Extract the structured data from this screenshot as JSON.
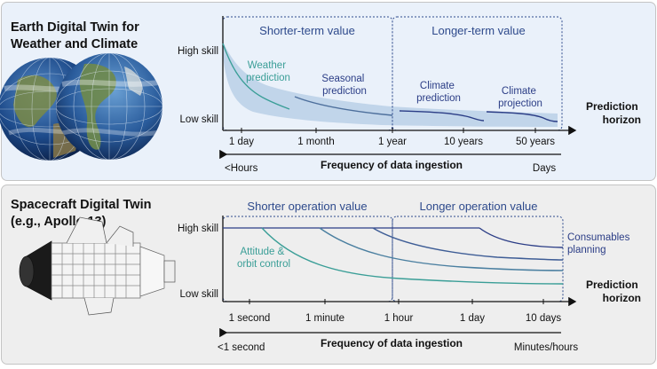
{
  "earth": {
    "title_line1": "Earth Digital Twin for",
    "title_line2": "Weather and Climate",
    "region_short": "Shorter-term value",
    "region_long": "Longer-term value",
    "y_high": "High skill",
    "y_low": "Low skill",
    "curve_weather": [
      "Weather",
      "prediction"
    ],
    "curve_seasonal": [
      "Seasonal",
      "prediction"
    ],
    "curve_climate_pred": [
      "Climate",
      "prediction"
    ],
    "curve_climate_proj": [
      "Climate",
      "projection"
    ],
    "x_axis_label": [
      "Prediction",
      "horizon"
    ],
    "x_ticks": [
      "1 day",
      "1 month",
      "1 year",
      "10 years",
      "50 years"
    ],
    "ingestion_label": "Frequency of data ingestion",
    "ingestion_left": "<Hours",
    "ingestion_right": "Days"
  },
  "spacecraft": {
    "title_line1": "Spacecraft Digital Twin",
    "title_line2": "(e.g., Apollo 13)",
    "region_short": "Shorter operation value",
    "region_long": "Longer operation value",
    "y_high": "High skill",
    "y_low": "Low skill",
    "curve_attitude": [
      "Attitude &",
      "orbit control"
    ],
    "curve_consumables": [
      "Consumables",
      "planning"
    ],
    "x_axis_label": [
      "Prediction",
      "horizon"
    ],
    "x_ticks": [
      "1 second",
      "1 minute",
      "1 hour",
      "1 day",
      "10 days"
    ],
    "ingestion_label": "Frequency of data ingestion",
    "ingestion_left": "<1 second",
    "ingestion_right": "Minutes/hours"
  },
  "colors": {
    "teal": "#3a9e97",
    "navy": "#2b3d86",
    "mid_blue": "#4d6f9c",
    "band": "#bcd1e8",
    "region_border": "#2e4a8c"
  }
}
